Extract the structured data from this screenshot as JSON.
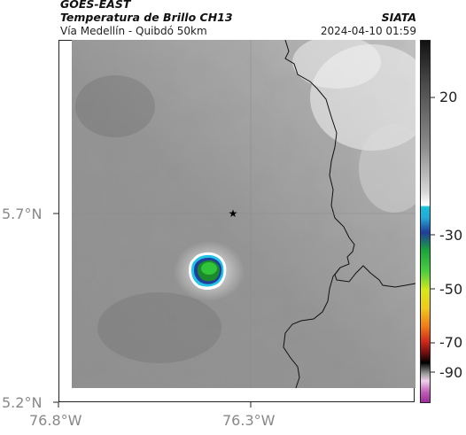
{
  "header": {
    "satellite": "GOES-EAST",
    "product": "Temperatura de Brillo CH13",
    "region": "Vía Medellín - Quibdó 50km",
    "brand": "SIATA",
    "datetime": "2024-04-10 01:59"
  },
  "map": {
    "lat_labels": [
      "5.7°N",
      "5.2°N"
    ],
    "lon_labels": [
      "76.8°W",
      "76.3°W"
    ],
    "marker": "star-marker",
    "gridline_color": "#888888",
    "storm_colors": [
      "#1a8a2a",
      "#2fc43a",
      "#1f3f9a",
      "#22c3e6",
      "#ffffff"
    ]
  },
  "colorbar": {
    "tick_labels": [
      "20",
      "-30",
      "-50",
      "-70",
      "-90"
    ],
    "segments": [
      "#1a1a1a",
      "#6f6f6f",
      "#cfcfcf",
      "#ffffff",
      "#18c0d8",
      "#1f3c9c",
      "#1aa53a",
      "#c8e61a",
      "#f3e41a",
      "#f0a21a",
      "#e23a1a",
      "#7a1010",
      "#000000",
      "#8a8a8a",
      "#e9b8e0",
      "#b23aa7"
    ]
  }
}
